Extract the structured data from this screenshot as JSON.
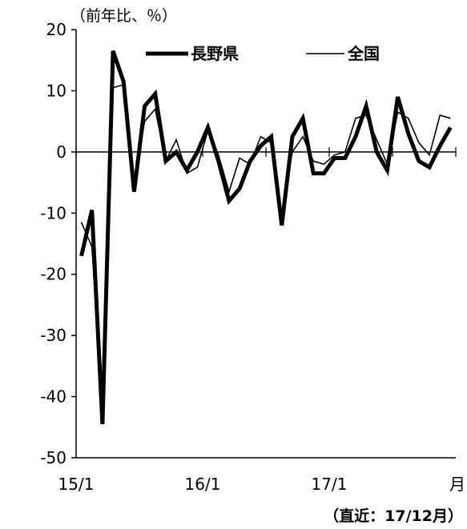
{
  "chart_data": {
    "type": "line",
    "unit_label": "（前年比、％）",
    "month_label": "月",
    "note": "（直近：17/12月）",
    "ylim": [
      -50,
      20
    ],
    "y_ticks": [
      "20",
      "10",
      "0",
      "-10",
      "-20",
      "-30",
      "-40",
      "-50"
    ],
    "y_tick_values": [
      20,
      10,
      0,
      -10,
      -20,
      -30,
      -40,
      -50
    ],
    "x_ticks": [
      {
        "label": "15/1",
        "index": 0
      },
      {
        "label": "16/1",
        "index": 12
      },
      {
        "label": "17/1",
        "index": 24
      }
    ],
    "x_count": 36,
    "grid": false,
    "legend_position": "top-right",
    "series": [
      {
        "name": "長野県",
        "style": "thick",
        "color": "#000000",
        "values": [
          -17,
          -9.5,
          -44.5,
          16.5,
          11.5,
          -6.5,
          7.5,
          9.5,
          -1.5,
          0,
          -3,
          0,
          4,
          -1.5,
          -8,
          -6,
          -1.5,
          1,
          2.5,
          -12,
          2.5,
          5.5,
          -3.5,
          -3.5,
          -1,
          -1,
          2.5,
          7.5,
          0,
          -3,
          9,
          3,
          -1.5,
          -2.5,
          1,
          4
        ]
      },
      {
        "name": "全国",
        "style": "thin",
        "color": "#000000",
        "values": [
          -11.5,
          -15.5,
          -42.5,
          10.5,
          11,
          -5,
          5,
          7,
          -1.5,
          2,
          -3.5,
          -2.5,
          3.5,
          -0.5,
          -6.5,
          -1,
          -2,
          2.5,
          1.5,
          -10,
          0,
          2.5,
          -1.5,
          -2,
          -0.5,
          0,
          5.5,
          6,
          2,
          -2,
          6.5,
          5.5,
          1.5,
          -0.5,
          6,
          5.5
        ]
      }
    ]
  }
}
